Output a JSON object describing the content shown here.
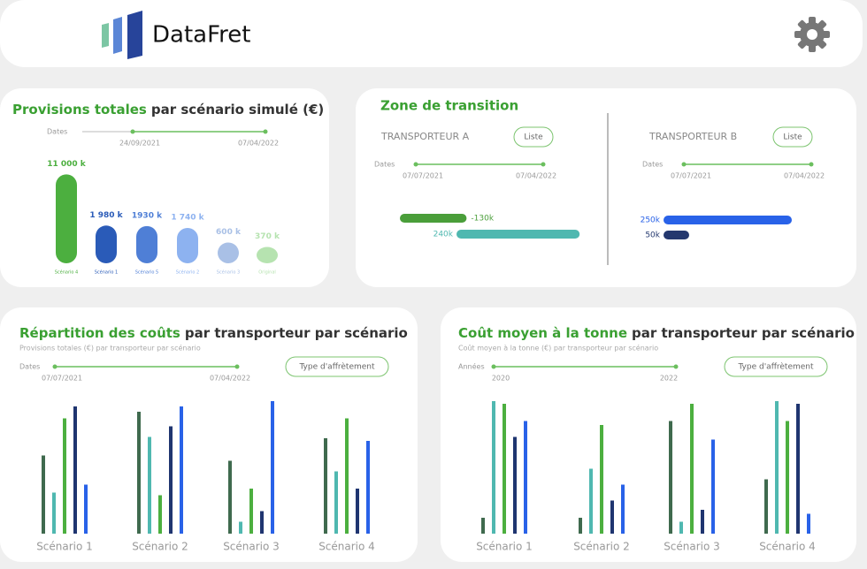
{
  "header": {
    "brand": "DataFret"
  },
  "provisions": {
    "title_strong": "Provisions totales",
    "title_rest": "par scénario simulé (€)",
    "dates_label": "Dates",
    "date_start": "24/09/2021",
    "date_end": "07/04/2022",
    "categories": [
      "Scénario 4",
      "Scénario 1",
      "Scénario 5",
      "Scénario 2",
      "Scénario 3",
      "Original"
    ],
    "values": [
      11000,
      1980,
      1930,
      1740,
      600,
      370
    ],
    "value_labels": [
      "11 000 k",
      "1 980 k",
      "1930 k",
      "1 740 k",
      "600 k",
      "370 k"
    ],
    "colors": [
      "#4caf3f",
      "#2a5bb8",
      "#4f7fd6",
      "#8db2f0",
      "#a9c0e6",
      "#b6e3b0"
    ]
  },
  "transition": {
    "title": "Zone de transition",
    "carriers": [
      {
        "name": "TRANSPORTEUR A",
        "button": "Liste",
        "dates_label": "Dates",
        "date_start": "07/07/2021",
        "date_end": "07/04/2022",
        "values": [
          -130,
          240
        ],
        "value_labels": [
          "-130k",
          "240k"
        ],
        "colors": [
          "#4a9e3a",
          "#4fb8b0"
        ]
      },
      {
        "name": "TRANSPORTEUR B",
        "button": "Liste",
        "dates_label": "Dates",
        "date_start": "07/07/2021",
        "date_end": "07/04/2022",
        "values": [
          250,
          50
        ],
        "value_labels": [
          "250k",
          "50k"
        ],
        "colors": [
          "#2962e8",
          "#24386e"
        ]
      }
    ]
  },
  "repartition": {
    "title_strong": "Répartition des coûts",
    "title_rest": "par transporteur par scénario",
    "subtitle": "Provisions totales (€) par transporteur par scénario",
    "dates_label": "Dates",
    "date_start": "07/07/2021",
    "date_end": "07/04/2022",
    "button": "Type d'affrètement",
    "categories": [
      "Scénario 1",
      "Scénario 2",
      "Scénario 3",
      "Scénario 4"
    ],
    "series": [
      {
        "color": "#3f6a4e",
        "values": [
          59,
          92,
          55,
          72
        ]
      },
      {
        "color": "#4fb8b0",
        "values": [
          31,
          73,
          9,
          47
        ]
      },
      {
        "color": "#4caf3f",
        "values": [
          87,
          29,
          34,
          87
        ]
      },
      {
        "color": "#1f3570",
        "values": [
          96,
          81,
          17,
          34
        ]
      },
      {
        "color": "#2962e8",
        "values": [
          37,
          96,
          100,
          70
        ]
      }
    ]
  },
  "cout": {
    "title_strong": "Coût moyen à la tonne",
    "title_rest": "par transporteur par scénario",
    "subtitle": "Coût moyen à la tonne (€) par transporteur par scénario",
    "dates_label": "Années",
    "date_start": "2020",
    "date_end": "2022",
    "button": "Type d'affrètement",
    "categories": [
      "Scénario 1",
      "Scénario 2",
      "Scénario 3",
      "Scénario 4"
    ],
    "series": [
      {
        "color": "#3f6a4e",
        "values": [
          12,
          12,
          85,
          41
        ]
      },
      {
        "color": "#4fb8b0",
        "values": [
          100,
          49,
          9,
          100
        ]
      },
      {
        "color": "#4caf3f",
        "values": [
          98,
          82,
          98,
          85
        ]
      },
      {
        "color": "#1f3570",
        "values": [
          73,
          25,
          18,
          98
        ]
      },
      {
        "color": "#2962e8",
        "values": [
          85,
          37,
          71,
          15
        ]
      }
    ]
  }
}
